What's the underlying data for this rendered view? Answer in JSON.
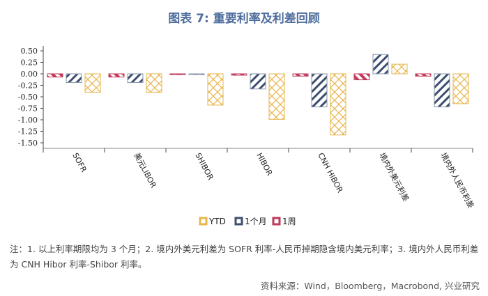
{
  "title": "图表 7: 重要利率及利差回顾",
  "chart_data": {
    "type": "bar",
    "title": "图表 7: 重要利率及利差回顾",
    "categories": [
      "SOFR",
      "美元LIBOR",
      "SHIBOR",
      "HIBOR",
      "CNH HIBOR",
      "境内外美元利差",
      "境内外人民币利差"
    ],
    "series": [
      {
        "name": "1周",
        "color": "#c0395a",
        "values": [
          -0.07,
          -0.07,
          0.0,
          -0.03,
          -0.05,
          -0.13,
          -0.05
        ]
      },
      {
        "name": "1个月",
        "color": "#3d4e6e",
        "values": [
          -0.19,
          -0.19,
          0.0,
          -0.33,
          -0.72,
          0.42,
          -0.72
        ]
      },
      {
        "name": "YTD",
        "color": "#e8b54a",
        "values": [
          -0.4,
          -0.4,
          -0.68,
          -0.99,
          -1.33,
          0.21,
          -0.65
        ]
      }
    ],
    "legend_order": [
      "YTD",
      "1个月",
      "1周"
    ],
    "ylim": [
      -1.5,
      0.5
    ],
    "yticks": [
      "0.50",
      "0.25",
      "0.00",
      "-0.25",
      "-0.50",
      "-0.75",
      "-1.00",
      "-1.25",
      "-1.50"
    ],
    "legend_position": "bottom-center",
    "grid": false
  },
  "note": "注：1. 以上利率期限均为 3 个月；2. 境内外美元利差为 SOFR 利率-人民币掉期隐含境内美元利率；3. 境内外人民币利差为 CNH Hibor 利率-Shibor 利率。",
  "source": "资料来源：Wind，Bloomberg，Macrobond, 兴业研究"
}
